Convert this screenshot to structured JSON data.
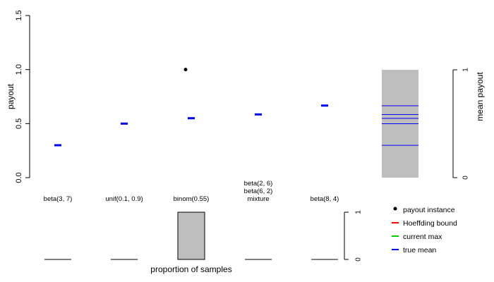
{
  "chart_data": [
    {
      "type": "scatter",
      "ylabel": "payout",
      "ylim": [
        0,
        1.5
      ],
      "yticks": [
        "0.0",
        "0.5",
        "1.0",
        "1.5"
      ],
      "categories": [
        [
          "beta(3, 7)"
        ],
        [
          "unif(0.1, 0.9)"
        ],
        [
          "binom(0.55)"
        ],
        [
          "beta(2, 6)",
          "beta(6, 2)",
          "mixture"
        ],
        [
          "beta(8, 4)"
        ]
      ],
      "series": [
        {
          "name": "true mean",
          "color": "#0000ff",
          "marker": "dash",
          "values": [
            0.3,
            0.5,
            0.55,
            0.585,
            0.667
          ]
        },
        {
          "name": "payout instance",
          "color": "#000000",
          "marker": "dot",
          "points": [
            {
              "category_index": 2,
              "value": 1.0
            }
          ]
        }
      ],
      "grid": false
    },
    {
      "type": "bar",
      "ylabel": "mean payout",
      "ylim": [
        0,
        1
      ],
      "yticks": [
        "0",
        "1"
      ],
      "bar_range": [
        0,
        1
      ],
      "bar_color": "#bebebe",
      "true_means": [
        0.3,
        0.5,
        0.55,
        0.585,
        0.667
      ],
      "line_color": "#0000ff"
    },
    {
      "type": "bar",
      "xlabel": "proportion of samples",
      "ylim": [
        0,
        1
      ],
      "yticks": [
        "0",
        "1"
      ],
      "values": [
        0,
        0,
        1,
        0,
        0
      ],
      "bar_color": "#bebebe"
    }
  ],
  "legend": {
    "placement": "bottom-right",
    "items": [
      {
        "label": "payout instance",
        "color": "#000000",
        "symbol": "dot"
      },
      {
        "label": "Hoeffding bound",
        "color": "#ff0000",
        "symbol": "line"
      },
      {
        "label": "current max",
        "color": "#00cd00",
        "symbol": "line"
      },
      {
        "label": "true mean",
        "color": "#0000ff",
        "symbol": "line"
      }
    ]
  }
}
